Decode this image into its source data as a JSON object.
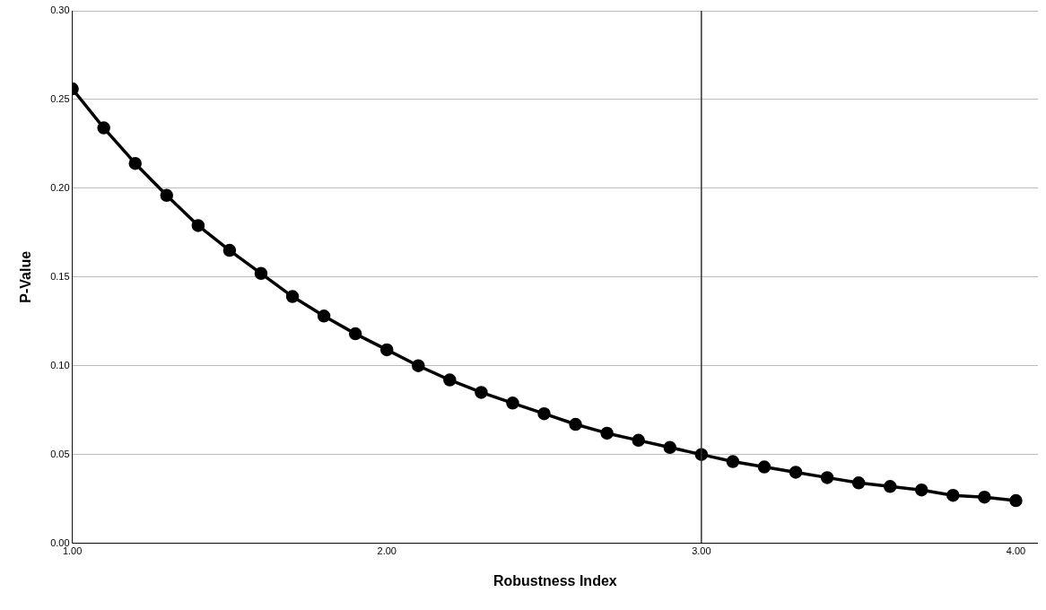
{
  "chart_data": {
    "type": "line",
    "xlabel": "Robustness Index",
    "ylabel": "P-Value",
    "x": [
      1.0,
      1.1,
      1.2,
      1.3,
      1.4,
      1.5,
      1.6,
      1.7,
      1.8,
      1.9,
      2.0,
      2.1,
      2.2,
      2.3,
      2.4,
      2.5,
      2.6,
      2.7,
      2.8,
      2.9,
      3.0,
      3.1,
      3.2,
      3.3,
      3.4,
      3.5,
      3.6,
      3.7,
      3.8,
      3.9,
      4.0
    ],
    "series": [
      {
        "color": "#000000",
        "values": [
          0.256,
          0.234,
          0.214,
          0.196,
          0.179,
          0.165,
          0.152,
          0.139,
          0.128,
          0.118,
          0.109,
          0.1,
          0.092,
          0.085,
          0.079,
          0.073,
          0.067,
          0.062,
          0.058,
          0.054,
          0.05,
          0.046,
          0.043,
          0.04,
          0.037,
          0.034,
          0.032,
          0.03,
          0.027,
          0.026,
          0.024
        ]
      }
    ],
    "xlim": [
      1,
      4.07
    ],
    "xticks": [
      {
        "value": 1,
        "label": "1.00"
      },
      {
        "value": 2,
        "label": "2.00"
      },
      {
        "value": 3,
        "label": "3.00"
      },
      {
        "value": 4,
        "label": "4.00"
      }
    ],
    "ylim": [
      0,
      0.3
    ],
    "yticks": [
      {
        "value": 0,
        "label": "0.00"
      },
      {
        "value": 0.05,
        "label": "0.05"
      },
      {
        "value": 0.1,
        "label": "0.10"
      },
      {
        "value": 0.15,
        "label": "0.15"
      },
      {
        "value": 0.2,
        "label": "0.20"
      },
      {
        "value": 0.25,
        "label": "0.25"
      },
      {
        "value": 0.3,
        "label": "0.30"
      }
    ],
    "ref_lines": [
      {
        "axis": "x",
        "value": 3,
        "color": "#333333"
      }
    ],
    "grid": "y",
    "marker": "circle",
    "line_style": "solid",
    "legend": false
  }
}
